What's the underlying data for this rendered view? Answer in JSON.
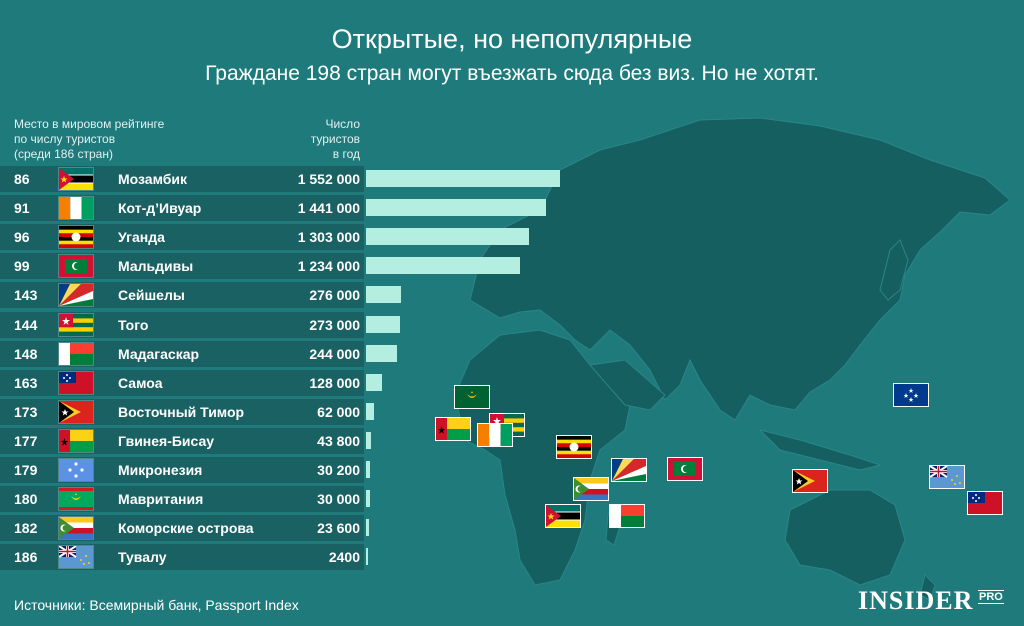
{
  "title": "Открытые, но непопулярные",
  "subtitle": "Граждане 198 стран могут въезжать сюда без виз. Но не хотят.",
  "header_rank": [
    "Место в мировом рейтинге",
    "по числу туристов",
    "(среди 186 стран)"
  ],
  "header_value": [
    "Число",
    "туристов",
    "в год"
  ],
  "source": "Источники: Всемирный банк, Passport Index",
  "logo": "INSIDER",
  "logo_suffix": "PRO",
  "colors": {
    "background": "#1f7a7c",
    "land": "#155f61",
    "row": "#1a6163",
    "bar": "#b3eee1"
  },
  "chart_data": {
    "type": "bar",
    "orientation": "horizontal",
    "categories": [
      "Мозамбик",
      "Кот-д’Ивуар",
      "Уганда",
      "Мальдивы",
      "Сейшелы",
      "Того",
      "Мадагаскар",
      "Самоа",
      "Восточный Тимор",
      "Гвинея-Бисау",
      "Микронезия",
      "Мавритания",
      "Коморские острова",
      "Тувалу"
    ],
    "ranks": [
      "86",
      "91",
      "96",
      "99",
      "143",
      "144",
      "148",
      "163",
      "173",
      "177",
      "179",
      "180",
      "182",
      "186"
    ],
    "labels": [
      "1 552 000",
      "1 441 000",
      "1 303 000",
      "1 234 000",
      "276 000",
      "273 000",
      "244 000",
      "128 000",
      "62 000",
      "43 800",
      "30 200",
      "30 000",
      "23 600",
      "2400"
    ],
    "values": [
      1552000,
      1441000,
      1303000,
      1234000,
      276000,
      273000,
      244000,
      128000,
      62000,
      43800,
      30200,
      30000,
      23600,
      2400
    ],
    "flags": [
      "mozambique-flag-icon",
      "cote-divoire-flag-icon",
      "uganda-flag-icon",
      "maldives-flag-icon",
      "seychelles-flag-icon",
      "togo-flag-icon",
      "madagascar-flag-icon",
      "samoa-flag-icon",
      "east-timor-flag-icon",
      "guinea-bissau-flag-icon",
      "micronesia-flag-icon",
      "mauritania-flag-icon",
      "comoros-flag-icon",
      "tuvalu-flag-icon"
    ],
    "xlim": [
      0,
      1552000
    ]
  }
}
